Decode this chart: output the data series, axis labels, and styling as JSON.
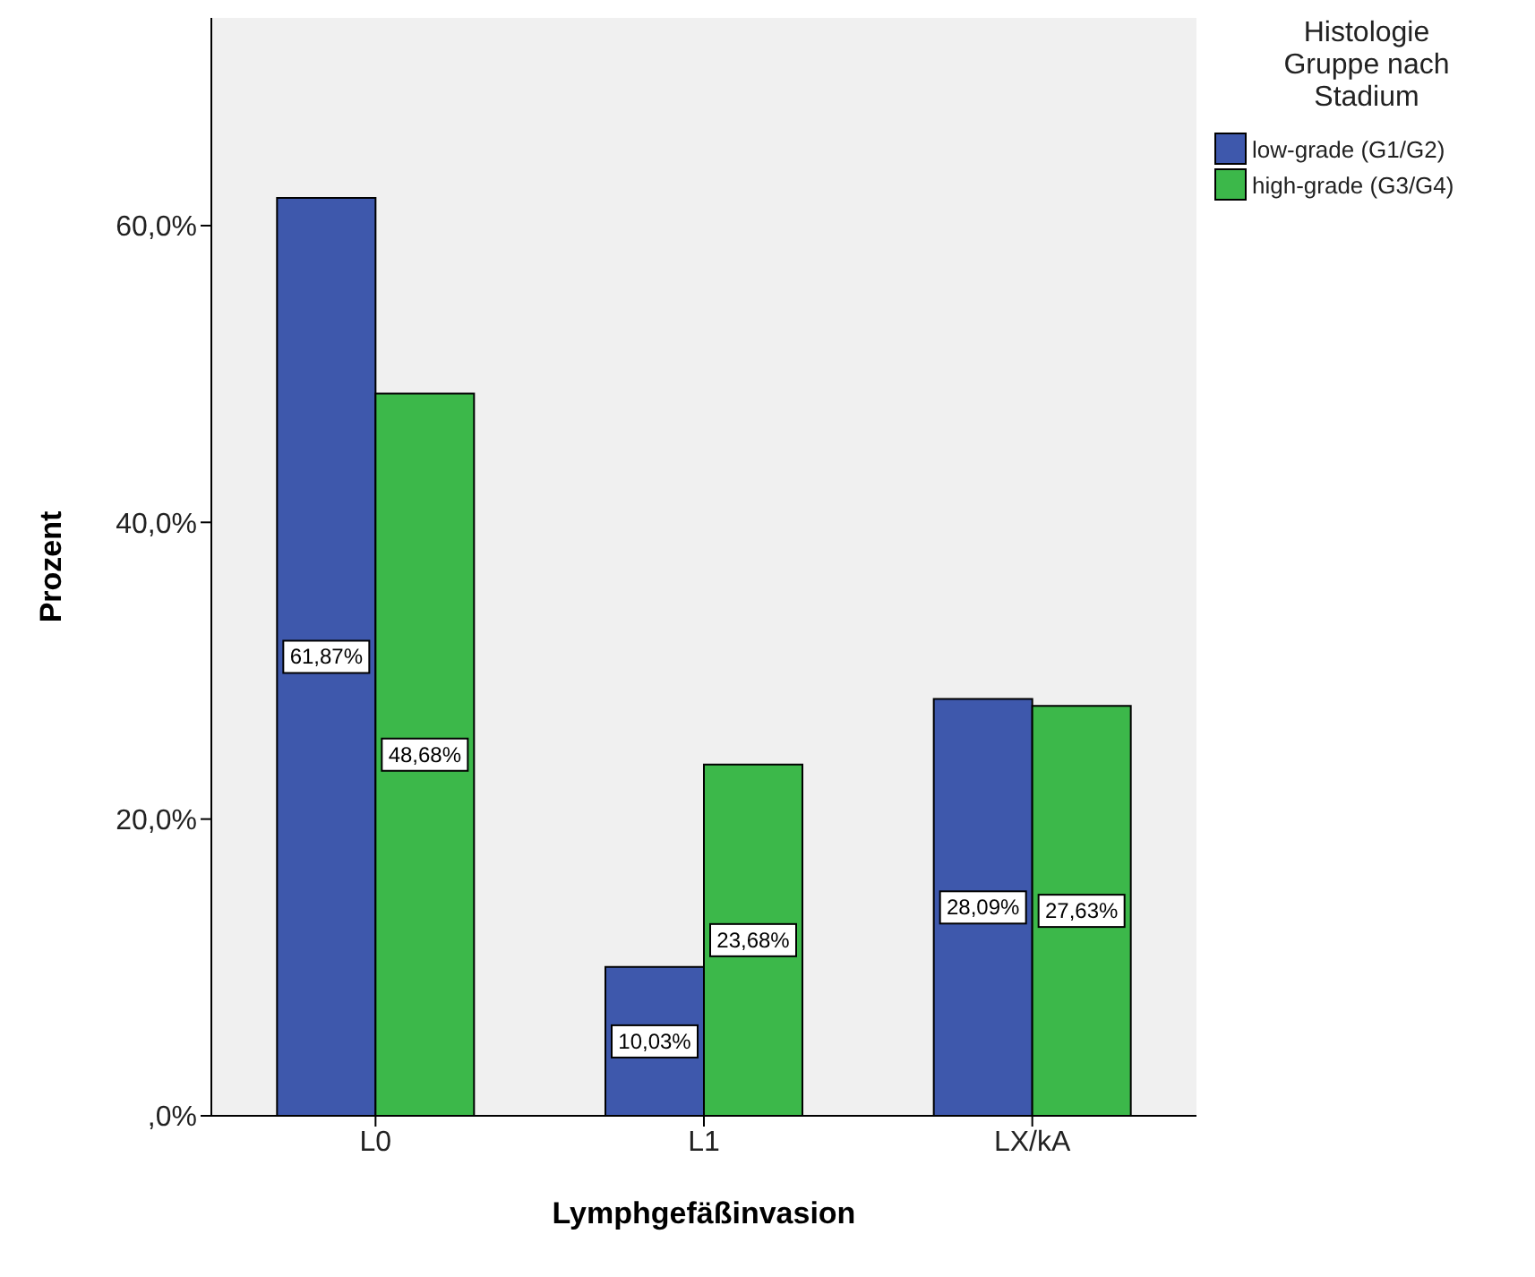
{
  "chart_data": {
    "type": "bar",
    "xlabel": "Lymphgefäßinvasion",
    "ylabel": "Prozent",
    "legend_title": "Histologie Gruppe nach Stadium",
    "categories": [
      "L0",
      "L1",
      "LX/kA"
    ],
    "series": [
      {
        "name": "low-grade (G1/G2)",
        "color": "#3e58ac",
        "values": [
          61.87,
          10.03,
          28.09
        ],
        "value_labels": [
          "61,87%",
          "10,03%",
          "28,09%"
        ]
      },
      {
        "name": "high-grade (G3/G4)",
        "color": "#3cb84a",
        "values": [
          48.68,
          23.68,
          27.63
        ],
        "value_labels": [
          "48,68%",
          "23,68%",
          "27,63%"
        ]
      }
    ],
    "ylim": [
      0,
      74
    ],
    "yticks": [
      {
        "value": 0,
        "label": ",0%"
      },
      {
        "value": 20,
        "label": "20,0%"
      },
      {
        "value": 40,
        "label": "40,0%"
      },
      {
        "value": 60,
        "label": "60,0%"
      }
    ],
    "grid": false,
    "legend": "top right"
  }
}
